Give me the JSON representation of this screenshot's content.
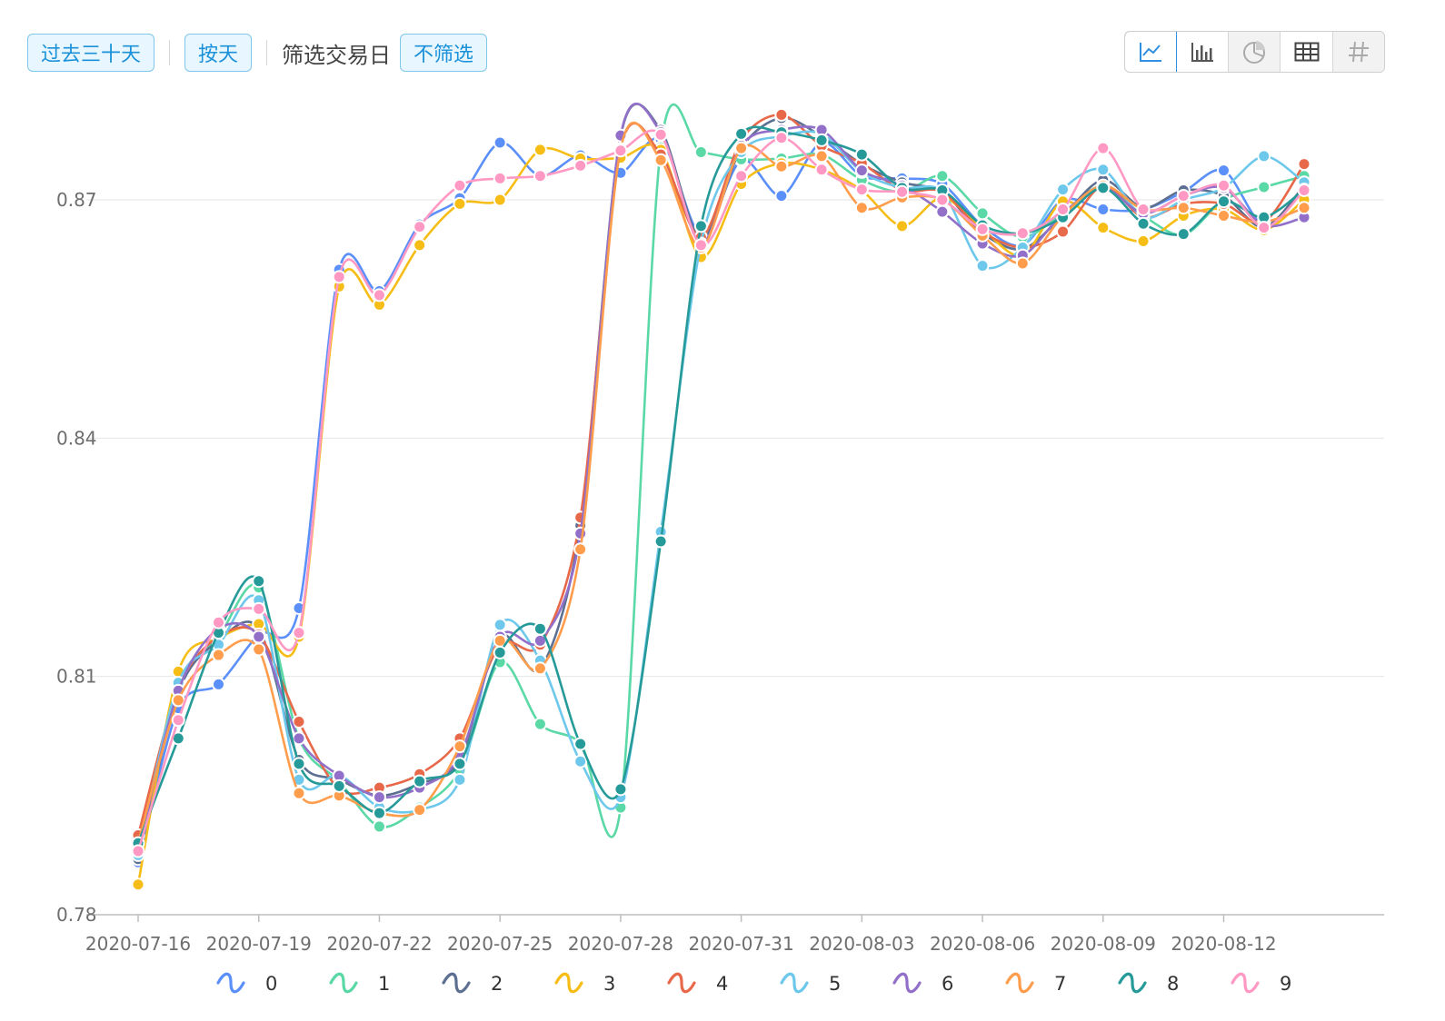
{
  "toolbar": {
    "range_label": "过去三十天",
    "granularity_label": "按天",
    "filter_prompt": "筛选交易日",
    "filter_value": "不筛选"
  },
  "view_switch": {
    "buttons": [
      {
        "icon": "line-chart-icon",
        "active": true
      },
      {
        "icon": "bar-chart-icon",
        "active": false
      },
      {
        "icon": "pie-chart-icon",
        "active": false,
        "disabled": true
      },
      {
        "icon": "table-icon",
        "active": false
      },
      {
        "icon": "pivot-grid-icon",
        "active": false,
        "disabled": true
      }
    ],
    "accent": "#2f8fe0"
  },
  "chart_data": {
    "type": "line",
    "smooth": true,
    "x": [
      "2020-07-16",
      "2020-07-17",
      "2020-07-18",
      "2020-07-19",
      "2020-07-20",
      "2020-07-21",
      "2020-07-22",
      "2020-07-23",
      "2020-07-24",
      "2020-07-25",
      "2020-07-26",
      "2020-07-27",
      "2020-07-28",
      "2020-07-29",
      "2020-07-30",
      "2020-07-31",
      "2020-08-01",
      "2020-08-02",
      "2020-08-03",
      "2020-08-04",
      "2020-08-05",
      "2020-08-06",
      "2020-08-07",
      "2020-08-08",
      "2020-08-09",
      "2020-08-10",
      "2020-08-11",
      "2020-08-12",
      "2020-08-13",
      "2020-08-14"
    ],
    "x_tick_labels": [
      "2020-07-16",
      "2020-07-19",
      "2020-07-22",
      "2020-07-25",
      "2020-07-28",
      "2020-07-31",
      "2020-08-03",
      "2020-08-06",
      "2020-08-09",
      "2020-08-12"
    ],
    "ylim": [
      0.78,
      0.87
    ],
    "y_ticks": [
      "0.78",
      "0.81",
      "0.84",
      "0.87"
    ],
    "grid": true,
    "legend_position": "bottom",
    "series": [
      {
        "name": "0",
        "color": "#5b8ff9",
        "values": [
          0.7866,
          0.806,
          0.809,
          0.8153,
          0.8186,
          0.8612,
          0.8585,
          0.8669,
          0.8702,
          0.8772,
          0.873,
          0.8756,
          0.8734,
          0.8776,
          0.8656,
          0.875,
          0.8705,
          0.8772,
          0.873,
          0.8727,
          0.872,
          0.8667,
          0.8643,
          0.87,
          0.8688,
          0.8688,
          0.871,
          0.8737,
          0.8668,
          0.8715
        ]
      },
      {
        "name": "1",
        "color": "#5ad8a6",
        "values": [
          0.788,
          0.809,
          0.815,
          0.8212,
          0.8022,
          0.7968,
          0.7911,
          0.7935,
          0.7982,
          0.8118,
          0.804,
          0.8016,
          0.7935,
          0.8766,
          0.876,
          0.8751,
          0.8752,
          0.8757,
          0.8725,
          0.871,
          0.873,
          0.8683,
          0.8653,
          0.8683,
          0.8718,
          0.868,
          0.8656,
          0.87,
          0.8716,
          0.873
        ]
      },
      {
        "name": "2",
        "color": "#5d7092",
        "values": [
          0.787,
          0.808,
          0.8145,
          0.816,
          0.7995,
          0.797,
          0.795,
          0.7965,
          0.7995,
          0.815,
          0.811,
          0.829,
          0.878,
          0.8788,
          0.865,
          0.8765,
          0.8803,
          0.878,
          0.8745,
          0.8722,
          0.871,
          0.8658,
          0.8638,
          0.868,
          0.8725,
          0.869,
          0.8712,
          0.8705,
          0.8665,
          0.8718
        ]
      },
      {
        "name": "3",
        "color": "#f6bd16",
        "values": [
          0.7838,
          0.8106,
          0.8148,
          0.8166,
          0.815,
          0.8591,
          0.8568,
          0.8643,
          0.8695,
          0.87,
          0.8763,
          0.8752,
          0.8753,
          0.8763,
          0.8628,
          0.872,
          0.8746,
          0.8738,
          0.8712,
          0.8667,
          0.8703,
          0.8663,
          0.863,
          0.8698,
          0.8665,
          0.8648,
          0.868,
          0.8688,
          0.8662,
          0.87
        ]
      },
      {
        "name": "4",
        "color": "#e8684a",
        "values": [
          0.79,
          0.8085,
          0.815,
          0.8153,
          0.8043,
          0.7958,
          0.796,
          0.7977,
          0.8022,
          0.814,
          0.814,
          0.83,
          0.8764,
          0.8757,
          0.8653,
          0.8775,
          0.8807,
          0.8768,
          0.8746,
          0.8712,
          0.871,
          0.866,
          0.864,
          0.866,
          0.8718,
          0.8678,
          0.8695,
          0.8695,
          0.8672,
          0.8745
        ]
      },
      {
        "name": "5",
        "color": "#6dc8ec",
        "values": [
          0.7875,
          0.8092,
          0.814,
          0.8196,
          0.797,
          0.7976,
          0.7935,
          0.7932,
          0.797,
          0.8165,
          0.812,
          0.7993,
          0.7948,
          0.8282,
          0.8645,
          0.876,
          0.878,
          0.8783,
          0.8735,
          0.8715,
          0.871,
          0.8617,
          0.864,
          0.8713,
          0.8738,
          0.8678,
          0.87,
          0.8715,
          0.8755,
          0.8722
        ]
      },
      {
        "name": "6",
        "color": "#9270ca",
        "values": [
          0.788,
          0.8082,
          0.816,
          0.815,
          0.8022,
          0.7975,
          0.7948,
          0.796,
          0.8,
          0.815,
          0.8145,
          0.828,
          0.8781,
          0.8785,
          0.8645,
          0.8768,
          0.8788,
          0.8788,
          0.8737,
          0.8718,
          0.8685,
          0.8645,
          0.863,
          0.8683,
          0.8715,
          0.8683,
          0.8705,
          0.8715,
          0.8668,
          0.8678
        ]
      },
      {
        "name": "7",
        "color": "#ff9d4d",
        "values": [
          0.789,
          0.807,
          0.8127,
          0.8134,
          0.7953,
          0.795,
          0.7928,
          0.7932,
          0.8012,
          0.8145,
          0.811,
          0.826,
          0.8764,
          0.875,
          0.864,
          0.8765,
          0.8742,
          0.8755,
          0.869,
          0.8703,
          0.87,
          0.8655,
          0.862,
          0.868,
          0.8718,
          0.8688,
          0.869,
          0.868,
          0.8672,
          0.869
        ]
      },
      {
        "name": "8",
        "color": "#269a99",
        "values": [
          0.789,
          0.8022,
          0.8155,
          0.822,
          0.799,
          0.7962,
          0.7928,
          0.7968,
          0.799,
          0.813,
          0.816,
          0.8015,
          0.7958,
          0.827,
          0.8667,
          0.8783,
          0.8785,
          0.8775,
          0.8757,
          0.8715,
          0.8712,
          0.8668,
          0.8658,
          0.8678,
          0.8715,
          0.867,
          0.8657,
          0.8698,
          0.8678,
          0.8713
        ]
      },
      {
        "name": "9",
        "color": "#ff99c3",
        "values": [
          0.788,
          0.8045,
          0.8168,
          0.8185,
          0.8155,
          0.8603,
          0.858,
          0.8666,
          0.8718,
          0.8727,
          0.873,
          0.8743,
          0.8762,
          0.8782,
          0.8643,
          0.873,
          0.8778,
          0.8738,
          0.8713,
          0.871,
          0.87,
          0.8663,
          0.8658,
          0.8688,
          0.8765,
          0.8688,
          0.8705,
          0.8718,
          0.8665,
          0.8712
        ]
      }
    ]
  }
}
